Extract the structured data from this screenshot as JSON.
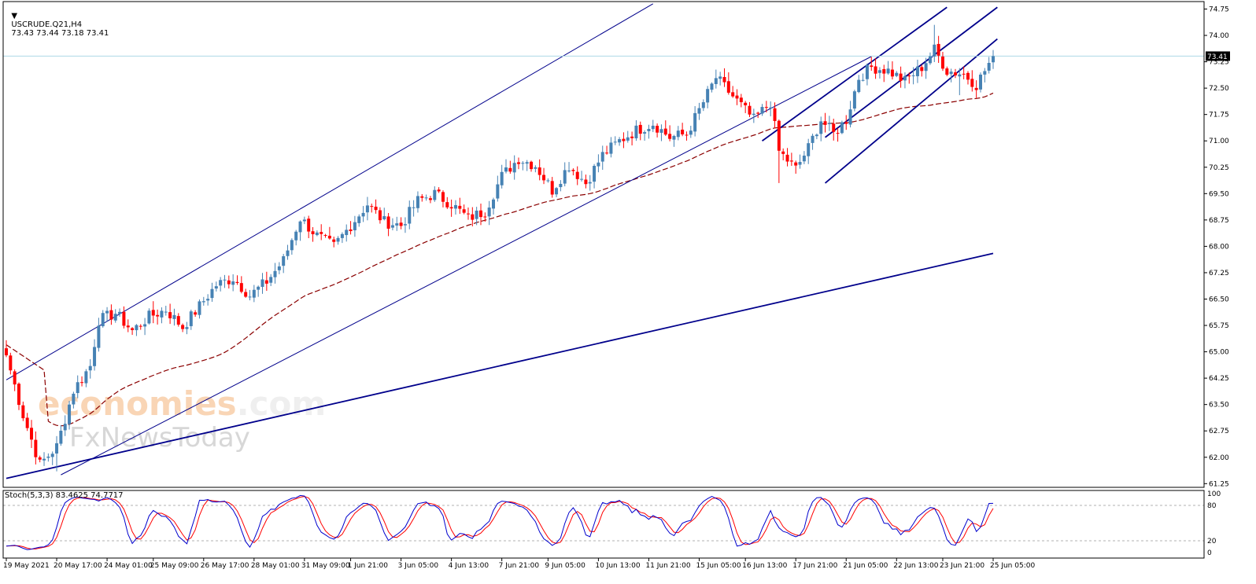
{
  "header": {
    "symbol": "USCRUDE.Q21,H4",
    "ohlc": "73.43 73.44 73.18 73.41"
  },
  "stoch_header": "Stoch(5,3,3) 83.4625 74.7717",
  "watermark": {
    "line1_a": "economies",
    "line1_b": ".com",
    "line2": "FxNewsToday"
  },
  "colors": {
    "bull": "#4682b4",
    "bear": "#ff0000",
    "trendline": "#00008b",
    "ma": "#8b0000",
    "stoch_main": "#0000cd",
    "stoch_signal": "#ff0000",
    "price_line": "#add8e6",
    "price_tag_bg": "#000000"
  },
  "chart_data": [
    {
      "type": "candlestick",
      "title": "USCRUDE.Q21,H4",
      "ylim": [
        61.25,
        74.75
      ],
      "y_ticks": [
        "74.75",
        "74.00",
        "73.25",
        "72.50",
        "71.75",
        "71.00",
        "70.25",
        "69.50",
        "68.75",
        "68.00",
        "67.25",
        "66.50",
        "65.75",
        "65.00",
        "64.25",
        "63.50",
        "62.75",
        "62.00",
        "61.25"
      ],
      "x_ticks": [
        "19 May 2021",
        "20 May 17:00",
        "24 May 01:00",
        "25 May 09:00",
        "26 May 17:00",
        "28 May 01:00",
        "31 May 09:00",
        "1 Jun 21:00",
        "3 Jun 05:00",
        "4 Jun 13:00",
        "7 Jun 21:00",
        "9 Jun 05:00",
        "10 Jun 13:00",
        "11 Jun 21:00",
        "15 Jun 05:00",
        "16 Jun 13:00",
        "17 Jun 21:00",
        "21 Jun 05:00",
        "22 Jun 13:00",
        "23 Jun 21:00",
        "25 Jun 05:00"
      ],
      "last_price": "73.41",
      "anchor_closes": [
        [
          0,
          64.9
        ],
        [
          4,
          63.2
        ],
        [
          8,
          61.8
        ],
        [
          12,
          62.3
        ],
        [
          16,
          63.9
        ],
        [
          20,
          64.6
        ],
        [
          22,
          65.9
        ],
        [
          26,
          66.1
        ],
        [
          30,
          65.6
        ],
        [
          34,
          66.0
        ],
        [
          38,
          66.2
        ],
        [
          42,
          65.7
        ],
        [
          46,
          66.3
        ],
        [
          50,
          66.9
        ],
        [
          54,
          67.1
        ],
        [
          58,
          66.6
        ],
        [
          62,
          67.0
        ],
        [
          66,
          67.6
        ],
        [
          70,
          68.8
        ],
        [
          74,
          68.3
        ],
        [
          78,
          68.0
        ],
        [
          82,
          68.6
        ],
        [
          86,
          69.2
        ],
        [
          90,
          68.7
        ],
        [
          94,
          68.6
        ],
        [
          98,
          69.3
        ],
        [
          102,
          69.5
        ],
        [
          106,
          69.2
        ],
        [
          110,
          68.8
        ],
        [
          114,
          69.0
        ],
        [
          118,
          70.0
        ],
        [
          122,
          70.5
        ],
        [
          126,
          70.3
        ],
        [
          130,
          69.6
        ],
        [
          134,
          70.3
        ],
        [
          138,
          69.8
        ],
        [
          142,
          70.6
        ],
        [
          146,
          71.0
        ],
        [
          150,
          71.3
        ],
        [
          154,
          71.5
        ],
        [
          158,
          71.1
        ],
        [
          162,
          71.2
        ],
        [
          166,
          72.1
        ],
        [
          169,
          72.8
        ],
        [
          172,
          72.4
        ],
        [
          175,
          72.0
        ],
        [
          178,
          71.6
        ],
        [
          182,
          72.1
        ],
        [
          184,
          70.7
        ],
        [
          188,
          70.2
        ],
        [
          191,
          70.8
        ],
        [
          194,
          71.6
        ],
        [
          197,
          71.2
        ],
        [
          200,
          71.6
        ],
        [
          203,
          72.8
        ],
        [
          206,
          73.1
        ],
        [
          210,
          73.0
        ],
        [
          214,
          72.7
        ],
        [
          218,
          73.1
        ],
        [
          221,
          73.6
        ],
        [
          224,
          73.0
        ],
        [
          228,
          72.9
        ],
        [
          231,
          72.6
        ],
        [
          234,
          73.2
        ],
        [
          235,
          73.41
        ]
      ],
      "indicator_ma": {
        "period": 50,
        "style": "dashed"
      },
      "trendlines": [
        {
          "name": "outer channel upper",
          "from": [
            0,
            64.2
          ],
          "to": [
            154,
            74.9
          ]
        },
        {
          "name": "outer channel lower",
          "from": [
            13,
            61.5
          ],
          "to": [
            206,
            73.4
          ]
        },
        {
          "name": "long-term support",
          "from": [
            0,
            61.4
          ],
          "to": [
            235,
            67.8
          ]
        },
        {
          "name": "inner channel upper",
          "from": [
            180,
            71.0
          ],
          "to": [
            224,
            74.8
          ]
        },
        {
          "name": "inner channel lower",
          "from": [
            195,
            69.8
          ],
          "to": [
            236,
            73.9
          ]
        },
        {
          "name": "inner channel mid",
          "from": [
            195,
            71.1
          ],
          "to": [
            236,
            74.8
          ]
        }
      ]
    },
    {
      "type": "line",
      "title": "Stoch(5,3,3)",
      "ylim": [
        0,
        100
      ],
      "y_ticks": [
        "100",
        "80",
        "20",
        "0"
      ],
      "levels": [
        80,
        20
      ],
      "series": [
        {
          "role": "main",
          "last": 83.4625
        },
        {
          "role": "signal",
          "last": 74.7717
        }
      ]
    }
  ]
}
